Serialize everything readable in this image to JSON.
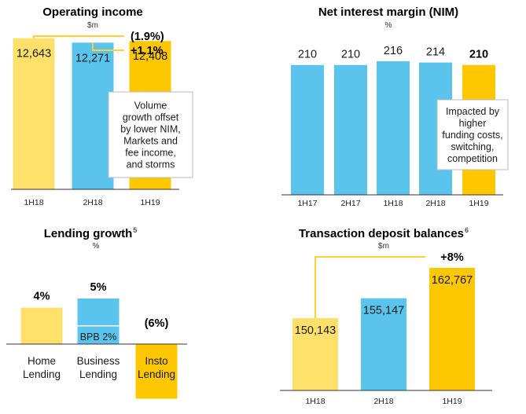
{
  "colors": {
    "light_yellow": "#FFE06A",
    "blue": "#5BC4EC",
    "gold": "#FFC700",
    "bracket": "#FFD233",
    "axis": "#333333",
    "callout_border": "#BBBBBB"
  },
  "chart_data": [
    {
      "type": "bar",
      "title": "Operating income",
      "unit": "$m",
      "categories": [
        "1H18",
        "2H18",
        "1H19"
      ],
      "values": [
        12643,
        12271,
        12408
      ],
      "value_labels": [
        "12,643",
        "12,271",
        "12,408"
      ],
      "bar_colors": [
        "light_yellow",
        "blue",
        "gold"
      ],
      "ylim": [
        0,
        14000
      ],
      "annotations": [
        {
          "text": "(1.9%)",
          "from": "1H18",
          "to": "1H19"
        },
        {
          "text": "+1.1%",
          "from": "2H18",
          "to": "1H19"
        }
      ],
      "callout": [
        "Volume",
        "growth offset",
        "by lower NIM,",
        "Markets and",
        "fee income,",
        "and storms"
      ]
    },
    {
      "type": "bar",
      "title": "Net interest margin (NIM)",
      "unit": "%",
      "categories": [
        "1H17",
        "2H17",
        "1H18",
        "2H18",
        "1H19"
      ],
      "values": [
        210,
        210,
        216,
        214,
        210
      ],
      "value_labels": [
        "210",
        "210",
        "216",
        "214",
        "210"
      ],
      "bar_colors": [
        "blue",
        "blue",
        "blue",
        "blue",
        "gold"
      ],
      "ylim": [
        0,
        230
      ],
      "callout": [
        "Impacted by",
        "higher",
        "funding costs,",
        "switching,",
        "competition"
      ]
    },
    {
      "type": "bar",
      "title": "Lending growth",
      "title_superscript": "5",
      "unit": "%",
      "categories": [
        [
          "Home",
          "Lending"
        ],
        [
          "Business",
          "Lending"
        ],
        [
          "Insto",
          "Lending"
        ]
      ],
      "values": [
        4,
        5,
        -6
      ],
      "value_labels": [
        "4%",
        "5%",
        "(6%)"
      ],
      "bar_colors": [
        "light_yellow",
        "blue",
        "gold"
      ],
      "ylim": [
        -6,
        5
      ],
      "segment": {
        "category": "Business Lending",
        "label": "BPB 2%",
        "value": 2
      }
    },
    {
      "type": "bar",
      "title": "Transaction deposit balances",
      "title_superscript": "6",
      "unit": "$m",
      "categories": [
        "1H18",
        "2H18",
        "1H19"
      ],
      "values": [
        150143,
        155147,
        162767
      ],
      "value_labels": [
        "150,143",
        "155,147",
        "162,767"
      ],
      "bar_colors": [
        "light_yellow",
        "blue",
        "gold"
      ],
      "ylim": [
        132000,
        165000
      ],
      "annotations": [
        {
          "text": "+8%",
          "from": "1H18",
          "to": "1H19"
        }
      ]
    }
  ]
}
